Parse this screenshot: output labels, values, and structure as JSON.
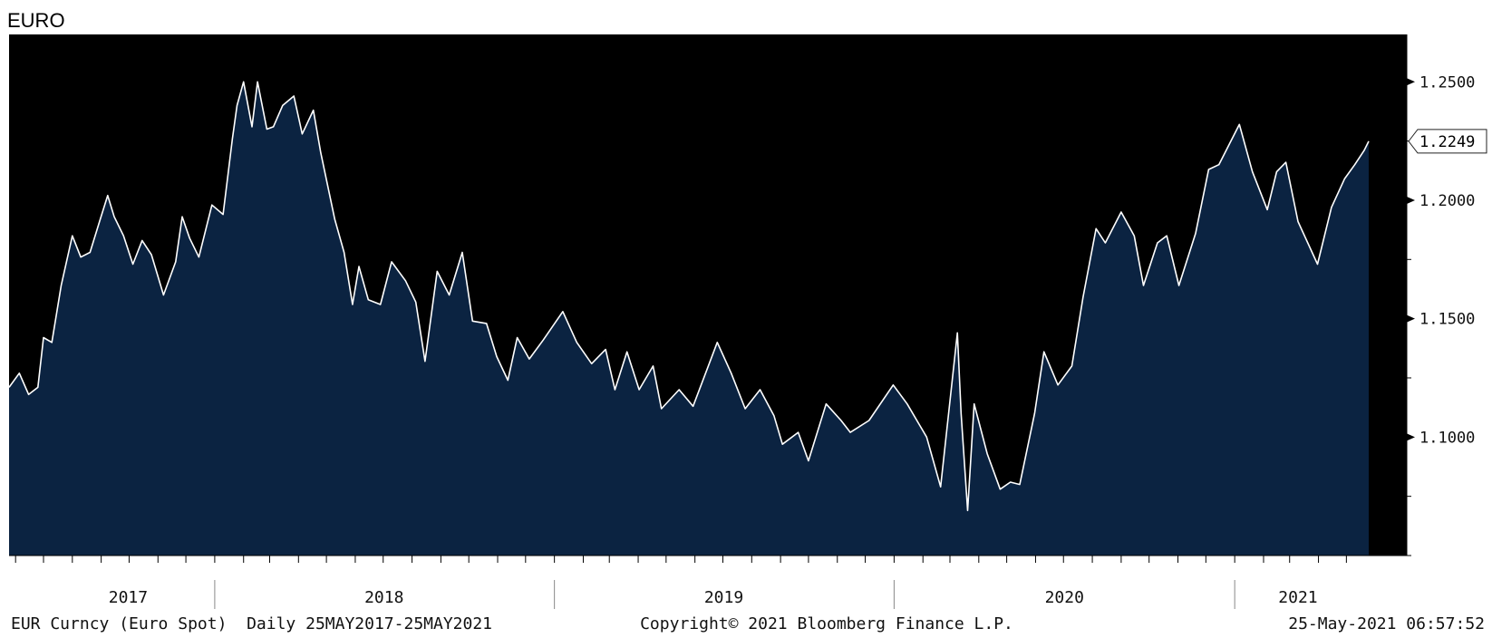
{
  "title": "EURO",
  "footer": {
    "left": "EUR Curncy (Euro Spot)  Daily 25MAY2017-25MAY2021",
    "center": "Copyright© 2021 Bloomberg Finance L.P.",
    "right": "25-May-2021 06:57:52"
  },
  "colors": {
    "background": "#000000",
    "area_fill": "#0b2341",
    "line": "#ffffff",
    "axis_text": "#111111"
  },
  "chart_data": {
    "type": "area",
    "title": "EURO",
    "xlabel": "",
    "ylabel": "",
    "x_range": [
      "2017-05-25",
      "2021-05-25"
    ],
    "ylim": [
      1.05,
      1.27
    ],
    "y_ticks": [
      1.1,
      1.15,
      1.2,
      1.25
    ],
    "y_tick_labels": [
      "1.1000",
      "1.1500",
      "1.2000",
      "1.2500"
    ],
    "x_tick_labels": [
      {
        "label": "2017",
        "date": "2017-09-30"
      },
      {
        "label": "2018",
        "date": "2018-07-02"
      },
      {
        "label": "2019",
        "date": "2019-07-02"
      },
      {
        "label": "2020",
        "date": "2020-07-02"
      },
      {
        "label": "2021",
        "date": "2021-03-10"
      }
    ],
    "year_boundaries": [
      "2018-01-01",
      "2019-01-01",
      "2020-01-01",
      "2021-01-01"
    ],
    "last_value": 1.2249,
    "last_value_label": "1.2249",
    "grid": false,
    "legend": "none",
    "series": [
      {
        "points": [
          [
            "2017-05-25",
            1.121
          ],
          [
            "2017-06-05",
            1.127
          ],
          [
            "2017-06-15",
            1.118
          ],
          [
            "2017-06-25",
            1.121
          ],
          [
            "2017-07-01",
            1.142
          ],
          [
            "2017-07-10",
            1.14
          ],
          [
            "2017-07-20",
            1.164
          ],
          [
            "2017-08-01",
            1.185
          ],
          [
            "2017-08-10",
            1.176
          ],
          [
            "2017-08-20",
            1.178
          ],
          [
            "2017-08-31",
            1.192
          ],
          [
            "2017-09-08",
            1.202
          ],
          [
            "2017-09-15",
            1.193
          ],
          [
            "2017-09-25",
            1.185
          ],
          [
            "2017-10-05",
            1.173
          ],
          [
            "2017-10-15",
            1.183
          ],
          [
            "2017-10-25",
            1.177
          ],
          [
            "2017-11-07",
            1.16
          ],
          [
            "2017-11-20",
            1.174
          ],
          [
            "2017-11-27",
            1.193
          ],
          [
            "2017-12-05",
            1.184
          ],
          [
            "2017-12-15",
            1.176
          ],
          [
            "2017-12-29",
            1.198
          ],
          [
            "2018-01-10",
            1.194
          ],
          [
            "2018-01-20",
            1.226
          ],
          [
            "2018-01-25",
            1.24
          ],
          [
            "2018-02-01",
            1.25
          ],
          [
            "2018-02-10",
            1.231
          ],
          [
            "2018-02-16",
            1.25
          ],
          [
            "2018-02-26",
            1.23
          ],
          [
            "2018-03-05",
            1.231
          ],
          [
            "2018-03-15",
            1.24
          ],
          [
            "2018-03-27",
            1.244
          ],
          [
            "2018-04-05",
            1.228
          ],
          [
            "2018-04-17",
            1.238
          ],
          [
            "2018-04-25",
            1.22
          ],
          [
            "2018-05-10",
            1.192
          ],
          [
            "2018-05-20",
            1.178
          ],
          [
            "2018-05-29",
            1.156
          ],
          [
            "2018-06-05",
            1.172
          ],
          [
            "2018-06-15",
            1.158
          ],
          [
            "2018-06-28",
            1.156
          ],
          [
            "2018-07-10",
            1.174
          ],
          [
            "2018-07-25",
            1.166
          ],
          [
            "2018-08-05",
            1.157
          ],
          [
            "2018-08-15",
            1.132
          ],
          [
            "2018-08-28",
            1.17
          ],
          [
            "2018-09-10",
            1.16
          ],
          [
            "2018-09-24",
            1.178
          ],
          [
            "2018-10-05",
            1.149
          ],
          [
            "2018-10-20",
            1.148
          ],
          [
            "2018-10-31",
            1.134
          ],
          [
            "2018-11-12",
            1.124
          ],
          [
            "2018-11-22",
            1.142
          ],
          [
            "2018-12-05",
            1.133
          ],
          [
            "2018-12-20",
            1.141
          ],
          [
            "2019-01-10",
            1.153
          ],
          [
            "2019-01-25",
            1.14
          ],
          [
            "2019-02-10",
            1.131
          ],
          [
            "2019-02-25",
            1.137
          ],
          [
            "2019-03-07",
            1.12
          ],
          [
            "2019-03-20",
            1.136
          ],
          [
            "2019-04-02",
            1.12
          ],
          [
            "2019-04-17",
            1.13
          ],
          [
            "2019-04-26",
            1.112
          ],
          [
            "2019-05-15",
            1.12
          ],
          [
            "2019-05-30",
            1.113
          ],
          [
            "2019-06-25",
            1.14
          ],
          [
            "2019-07-10",
            1.127
          ],
          [
            "2019-07-25",
            1.112
          ],
          [
            "2019-08-10",
            1.12
          ],
          [
            "2019-08-25",
            1.109
          ],
          [
            "2019-09-03",
            1.097
          ],
          [
            "2019-09-20",
            1.102
          ],
          [
            "2019-10-01",
            1.09
          ],
          [
            "2019-10-20",
            1.114
          ],
          [
            "2019-11-05",
            1.107
          ],
          [
            "2019-11-15",
            1.102
          ],
          [
            "2019-12-05",
            1.107
          ],
          [
            "2019-12-31",
            1.122
          ],
          [
            "2020-01-15",
            1.114
          ],
          [
            "2020-02-05",
            1.1
          ],
          [
            "2020-02-20",
            1.079
          ],
          [
            "2020-03-09",
            1.144
          ],
          [
            "2020-03-13",
            1.11
          ],
          [
            "2020-03-20",
            1.069
          ],
          [
            "2020-03-27",
            1.114
          ],
          [
            "2020-04-10",
            1.093
          ],
          [
            "2020-04-24",
            1.078
          ],
          [
            "2020-05-05",
            1.081
          ],
          [
            "2020-05-15",
            1.08
          ],
          [
            "2020-05-31",
            1.11
          ],
          [
            "2020-06-10",
            1.136
          ],
          [
            "2020-06-25",
            1.122
          ],
          [
            "2020-07-10",
            1.13
          ],
          [
            "2020-07-22",
            1.159
          ],
          [
            "2020-08-05",
            1.188
          ],
          [
            "2020-08-15",
            1.182
          ],
          [
            "2020-09-01",
            1.195
          ],
          [
            "2020-09-15",
            1.185
          ],
          [
            "2020-09-25",
            1.164
          ],
          [
            "2020-10-10",
            1.182
          ],
          [
            "2020-10-20",
            1.185
          ],
          [
            "2020-11-02",
            1.164
          ],
          [
            "2020-11-20",
            1.186
          ],
          [
            "2020-12-04",
            1.213
          ],
          [
            "2020-12-15",
            1.215
          ],
          [
            "2021-01-06",
            1.232
          ],
          [
            "2021-01-20",
            1.212
          ],
          [
            "2021-02-05",
            1.196
          ],
          [
            "2021-02-15",
            1.212
          ],
          [
            "2021-02-25",
            1.216
          ],
          [
            "2021-03-10",
            1.191
          ],
          [
            "2021-03-31",
            1.173
          ],
          [
            "2021-04-15",
            1.197
          ],
          [
            "2021-04-29",
            1.209
          ],
          [
            "2021-05-10",
            1.215
          ],
          [
            "2021-05-20",
            1.221
          ],
          [
            "2021-05-25",
            1.2249
          ]
        ]
      }
    ]
  }
}
